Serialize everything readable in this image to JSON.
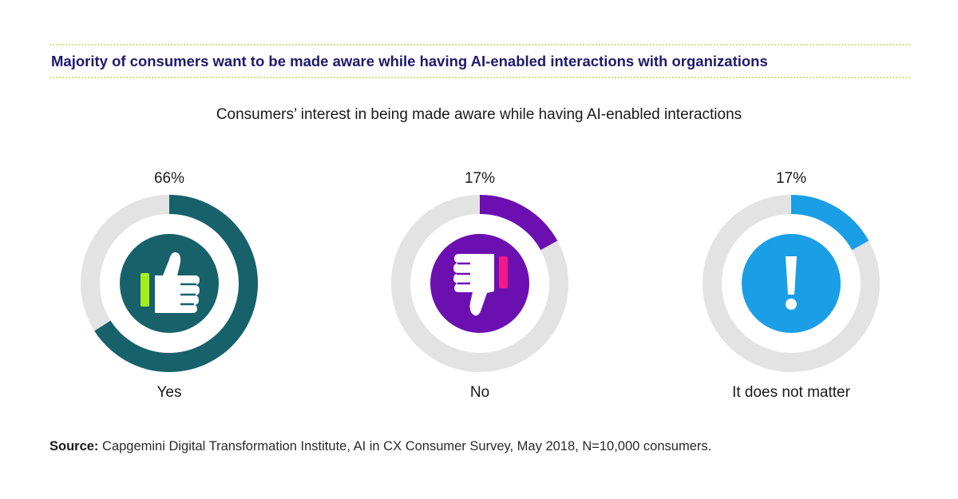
{
  "headline": "Majority of consumers want to be made aware while having AI-enabled interactions with organizations",
  "source": {
    "label": "Source:",
    "text": " Capgemini Digital Transformation Institute, AI in CX Consumer Survey, May 2018, N=10,000 consumers."
  },
  "chart_data": {
    "type": "pie",
    "style": "donut",
    "title": "Consumers’ interest in being made aware while having AI-enabled interactions",
    "unit": "%",
    "categories": [
      "Yes",
      "No",
      "It does not matter"
    ],
    "values": [
      66,
      17,
      17
    ],
    "value_labels": [
      "66%",
      "17%",
      "17%"
    ],
    "icons": [
      "thumbs-up-icon",
      "thumbs-down-icon",
      "exclamation-icon"
    ],
    "colors": [
      "#17616b",
      "#6c0fb0",
      "#1a9ee6"
    ],
    "track_color": "#e3e3e3",
    "accent_colors": [
      "#a3ee1a",
      "#f0198a",
      "#1a9ee6"
    ]
  }
}
